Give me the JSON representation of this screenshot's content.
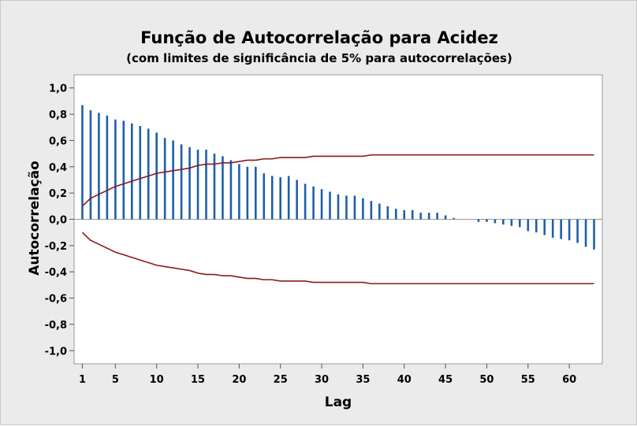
{
  "chart_data": {
    "type": "bar",
    "title": "Função de Autocorrelação para Acidez",
    "subtitle": "(com limites de significância de 5% para autocorrelações)",
    "xlabel": "Lag",
    "ylabel": "Autocorrelação",
    "ylim": [
      -1.1,
      1.1
    ],
    "xlim": [
      0,
      64
    ],
    "y_ticks": [
      1.0,
      0.8,
      0.6,
      0.4,
      0.2,
      0.0,
      -0.2,
      -0.4,
      -0.6,
      -0.8,
      -1.0
    ],
    "y_tick_labels": [
      "1,0",
      "0,8",
      "0,6",
      "0,4",
      "0,2",
      "0,0",
      "-0,2",
      "-0,4",
      "-0,6",
      "-0,8",
      "-1,0"
    ],
    "x_ticks": [
      1,
      5,
      10,
      15,
      20,
      25,
      30,
      35,
      40,
      45,
      50,
      55,
      60
    ],
    "x_tick_labels": [
      "1",
      "5",
      "10",
      "15",
      "20",
      "25",
      "30",
      "35",
      "40",
      "45",
      "50",
      "55",
      "60"
    ],
    "lags": [
      1,
      2,
      3,
      4,
      5,
      6,
      7,
      8,
      9,
      10,
      11,
      12,
      13,
      14,
      15,
      16,
      17,
      18,
      19,
      20,
      21,
      22,
      23,
      24,
      25,
      26,
      27,
      28,
      29,
      30,
      31,
      32,
      33,
      34,
      35,
      36,
      37,
      38,
      39,
      40,
      41,
      42,
      43,
      44,
      45,
      46,
      47,
      48,
      49,
      50,
      51,
      52,
      53,
      54,
      55,
      56,
      57,
      58,
      59,
      60,
      61,
      62,
      63
    ],
    "values": [
      0.87,
      0.83,
      0.81,
      0.79,
      0.76,
      0.75,
      0.73,
      0.71,
      0.69,
      0.66,
      0.62,
      0.6,
      0.57,
      0.55,
      0.53,
      0.53,
      0.5,
      0.48,
      0.45,
      0.42,
      0.4,
      0.4,
      0.35,
      0.33,
      0.32,
      0.33,
      0.3,
      0.27,
      0.25,
      0.23,
      0.21,
      0.19,
      0.18,
      0.18,
      0.16,
      0.14,
      0.12,
      0.1,
      0.08,
      0.07,
      0.07,
      0.05,
      0.05,
      0.05,
      0.03,
      0.01,
      0.0,
      0.0,
      -0.02,
      -0.02,
      -0.03,
      -0.04,
      -0.05,
      -0.06,
      -0.09,
      -0.1,
      -0.12,
      -0.14,
      -0.15,
      -0.16,
      -0.18,
      -0.21,
      -0.23
    ],
    "significance_limits": {
      "lags": [
        1,
        2,
        3,
        4,
        5,
        6,
        7,
        8,
        9,
        10,
        11,
        12,
        13,
        14,
        15,
        16,
        17,
        18,
        19,
        20,
        21,
        22,
        23,
        24,
        25,
        26,
        27,
        28,
        29,
        30,
        31,
        32,
        33,
        34,
        35,
        36,
        37,
        38,
        39,
        40,
        41,
        42,
        43,
        44,
        45,
        46,
        47,
        48,
        49,
        50,
        51,
        52,
        53,
        54,
        55,
        56,
        57,
        58,
        59,
        60,
        61,
        62,
        63
      ],
      "upper": [
        0.1,
        0.16,
        0.19,
        0.22,
        0.25,
        0.27,
        0.29,
        0.31,
        0.33,
        0.35,
        0.36,
        0.37,
        0.38,
        0.39,
        0.41,
        0.42,
        0.42,
        0.43,
        0.43,
        0.44,
        0.45,
        0.45,
        0.46,
        0.46,
        0.47,
        0.47,
        0.47,
        0.47,
        0.48,
        0.48,
        0.48,
        0.48,
        0.48,
        0.48,
        0.48,
        0.49,
        0.49,
        0.49,
        0.49,
        0.49,
        0.49,
        0.49,
        0.49,
        0.49,
        0.49,
        0.49,
        0.49,
        0.49,
        0.49,
        0.49,
        0.49,
        0.49,
        0.49,
        0.49,
        0.49,
        0.49,
        0.49,
        0.49,
        0.49,
        0.49,
        0.49,
        0.49,
        0.49
      ]
    },
    "grid": false,
    "colors": {
      "bars": "#1f5fa8",
      "limits": "#8b1a1a",
      "zero_line": "#999999",
      "plot_background": "#ffffff",
      "outer_background": "#ebebeb"
    }
  }
}
